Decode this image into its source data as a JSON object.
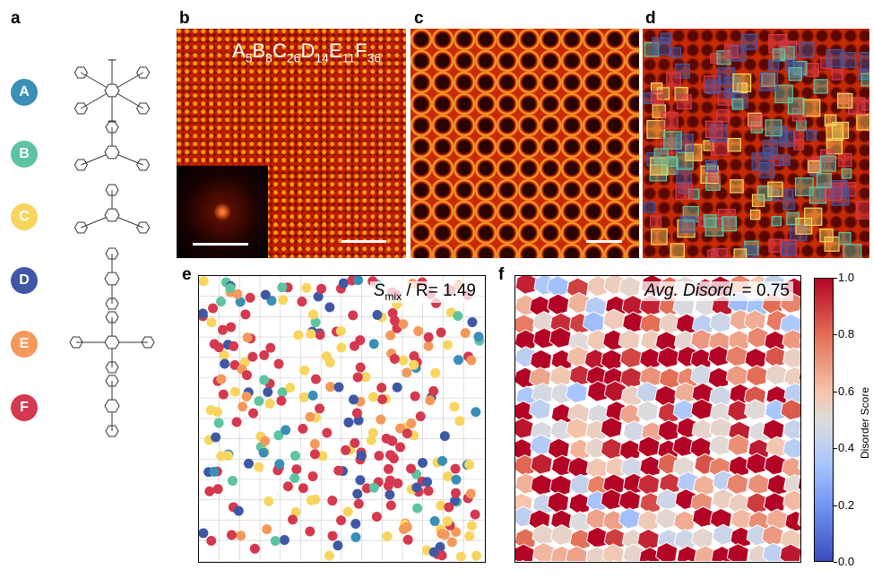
{
  "panels": {
    "a": "a",
    "b": "b",
    "c": "c",
    "d": "d",
    "e": "e",
    "f": "f"
  },
  "molecules": [
    {
      "label": "A",
      "color": "#3a8fb7"
    },
    {
      "label": "B",
      "color": "#5ec3a2"
    },
    {
      "label": "C",
      "color": "#f8d55e"
    },
    {
      "label": "D",
      "color": "#3f58a6"
    },
    {
      "label": "E",
      "color": "#f4995a"
    },
    {
      "label": "F",
      "color": "#d4394f"
    }
  ],
  "formula": [
    {
      "el": "A",
      "n": "5"
    },
    {
      "el": "B",
      "n": "8"
    },
    {
      "el": "C",
      "n": "26"
    },
    {
      "el": "D",
      "n": "14"
    },
    {
      "el": "E",
      "n": "11"
    },
    {
      "el": "F",
      "n": "36"
    }
  ],
  "panel_e": {
    "symbol": "S",
    "subscript": "mix",
    "rest": " / R= 1.49"
  },
  "panel_f": {
    "label": "Avg. Disord.",
    "value": " = 0.75"
  },
  "colorbar": {
    "label": "Disorder Score",
    "ticks": [
      "1.0",
      "0.8",
      "0.6",
      "0.4",
      "0.2",
      "0.0"
    ],
    "colormap": "coolwarm",
    "range": [
      0,
      1
    ]
  }
}
